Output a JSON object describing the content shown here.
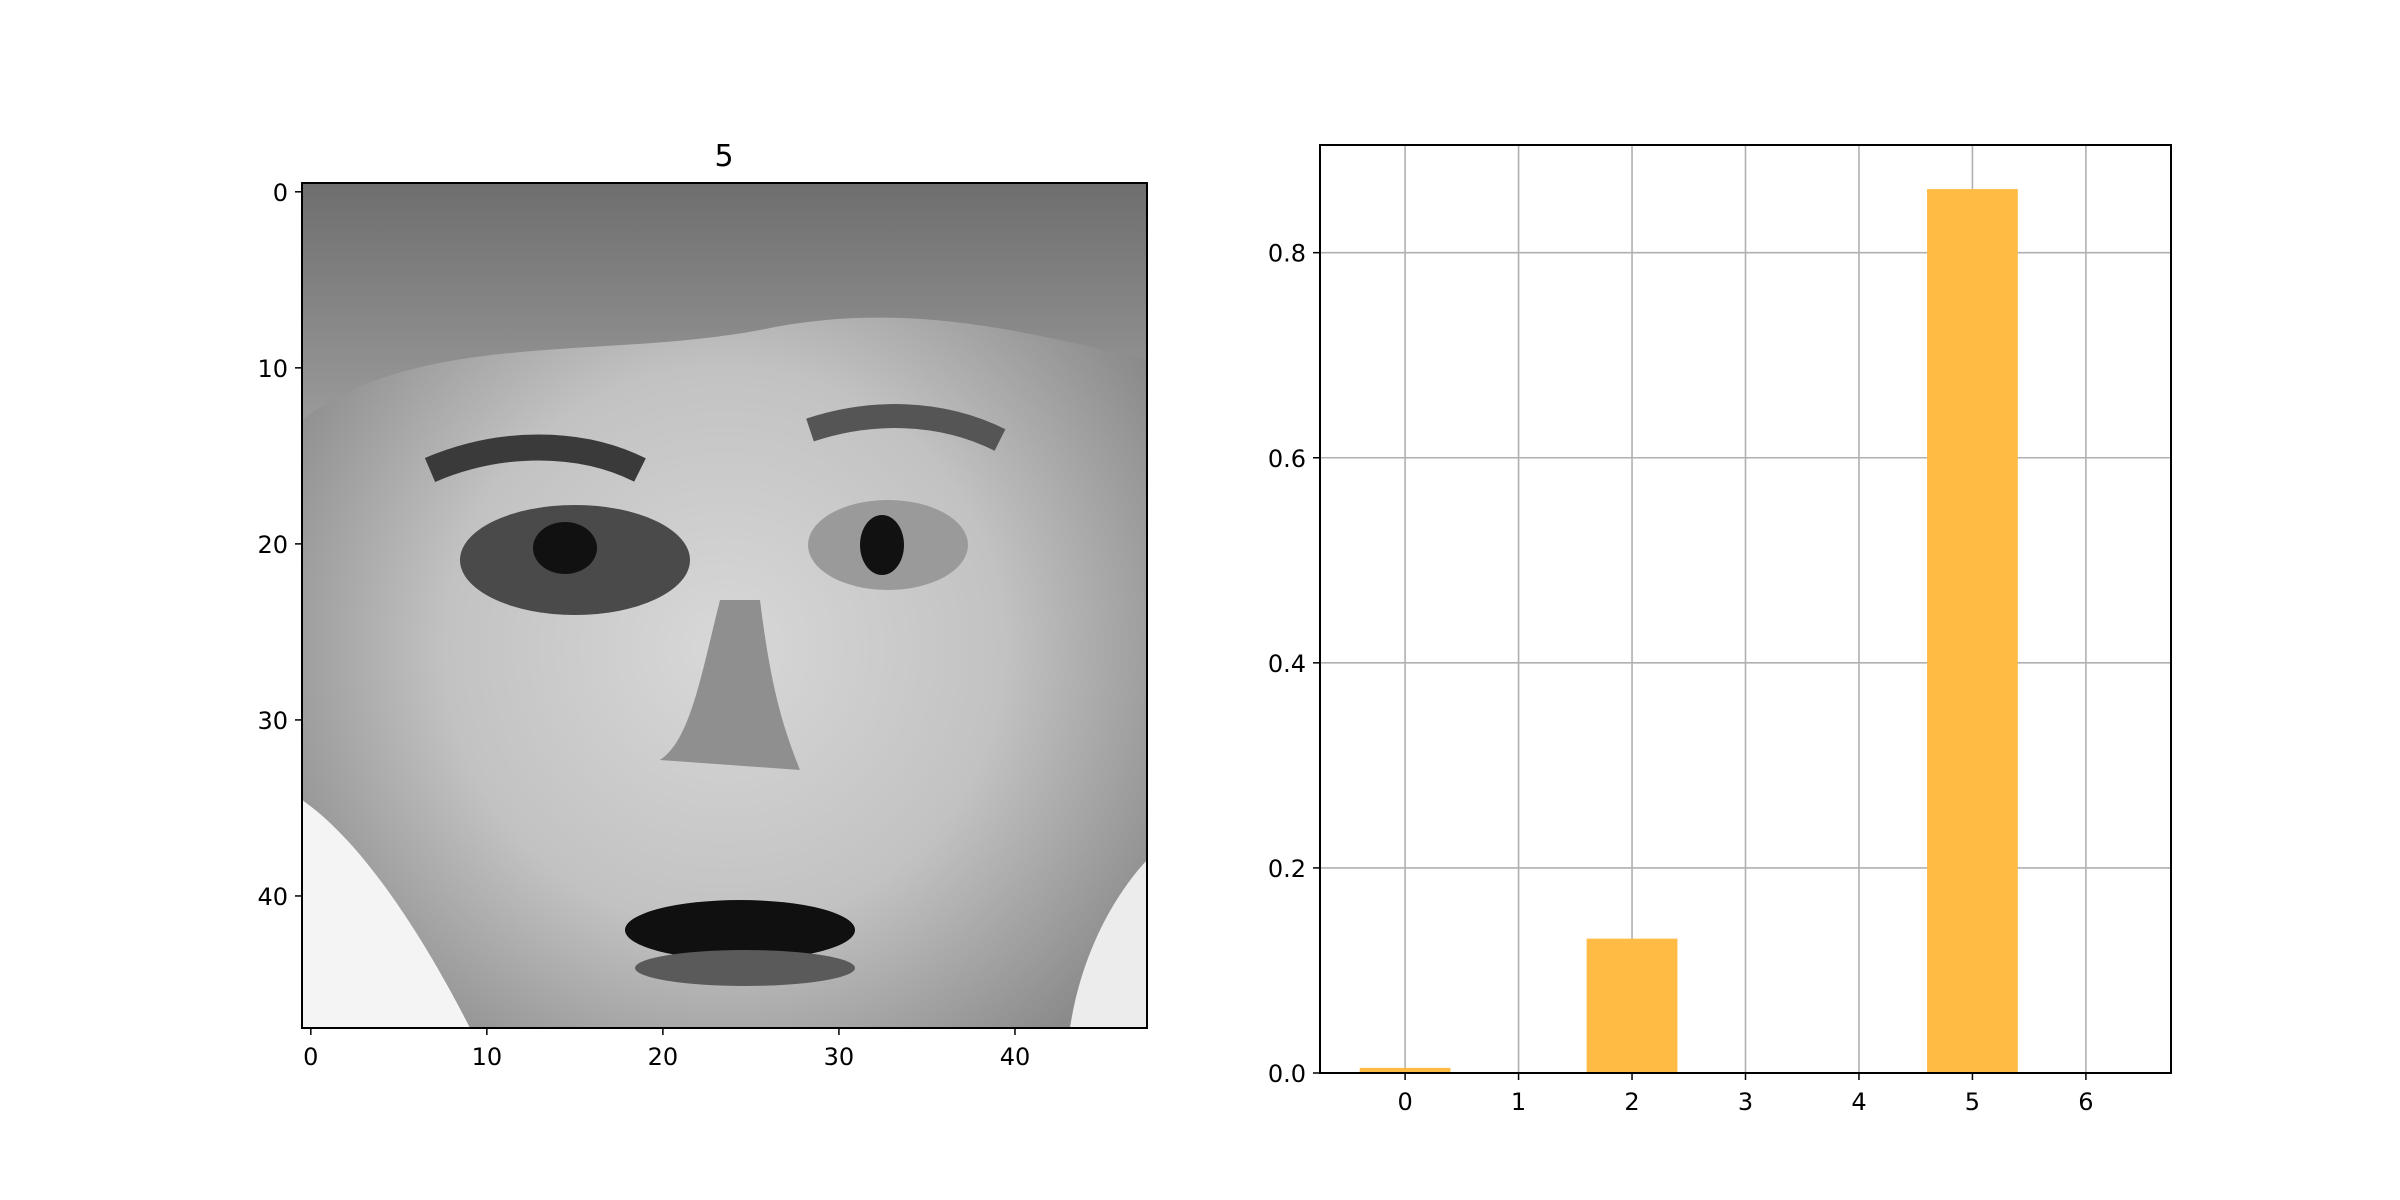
{
  "chart_data": [
    {
      "type": "heatmap",
      "title": "5",
      "colormap": "gray",
      "shape": [
        48,
        48
      ],
      "xlabel": "",
      "ylabel": "",
      "xticks": [
        "0",
        "10",
        "20",
        "30",
        "40"
      ],
      "yticks": [
        "0",
        "10",
        "20",
        "30",
        "40"
      ],
      "xlim": [
        -0.5,
        47.5
      ],
      "ylim": [
        47.5,
        -0.5
      ]
    },
    {
      "type": "bar",
      "title": "",
      "xlabel": "",
      "ylabel": "",
      "categories": [
        "0",
        "1",
        "2",
        "3",
        "4",
        "5",
        "6"
      ],
      "values": [
        0.005,
        0.0,
        0.131,
        0.001,
        0.0,
        0.862,
        0.0
      ],
      "bar_color": "#ffbb44",
      "xlim": [
        -0.75,
        6.75
      ],
      "ylim": [
        0,
        0.905
      ],
      "yticks": [
        "0.0",
        "0.2",
        "0.4",
        "0.6",
        "0.8"
      ],
      "grid": true
    }
  ]
}
